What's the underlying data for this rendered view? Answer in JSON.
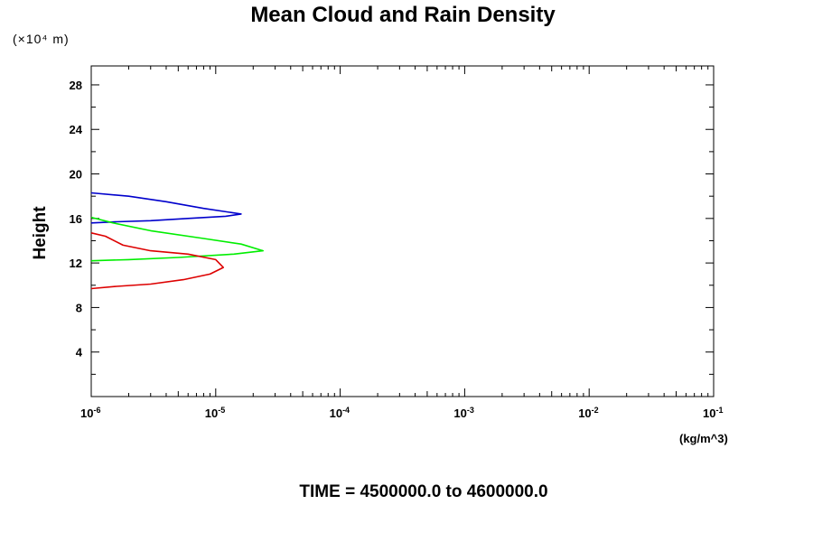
{
  "chart_data": {
    "type": "line",
    "title": "Mean Cloud and Rain Density",
    "ylabel": "Height",
    "y_unit_note": "(×10⁴ m)",
    "x_unit": "(kg/m^3)",
    "footer": "TIME = 4500000.0 to 4600000.0",
    "x_scale": "log",
    "xlim": [
      1e-06,
      0.1
    ],
    "ylim": [
      0,
      29.7
    ],
    "grid": false,
    "x_ticks": [
      {
        "value": 1e-06,
        "base": "10",
        "exp": "-6"
      },
      {
        "value": 1e-05,
        "base": "10",
        "exp": "-5"
      },
      {
        "value": 0.0001,
        "base": "10",
        "exp": "-4"
      },
      {
        "value": 0.001,
        "base": "10",
        "exp": "-3"
      },
      {
        "value": 0.01,
        "base": "10",
        "exp": "-2"
      },
      {
        "value": 0.1,
        "base": "10",
        "exp": "-1"
      }
    ],
    "y_ticks": [
      4,
      8,
      12,
      16,
      20,
      24,
      28
    ],
    "series": [
      {
        "color": "#0000cc",
        "points": [
          [
            1e-06,
            18.3
          ],
          [
            2e-06,
            18.0
          ],
          [
            4e-06,
            17.5
          ],
          [
            8e-06,
            16.9
          ],
          [
            1.6e-05,
            16.4
          ],
          [
            1.2e-05,
            16.2
          ],
          [
            6e-06,
            16.0
          ],
          [
            3e-06,
            15.8
          ],
          [
            1.6e-06,
            15.7
          ],
          [
            1e-06,
            15.6
          ]
        ]
      },
      {
        "color": "#00ee00",
        "points": [
          [
            1e-06,
            16.1
          ],
          [
            1.5e-06,
            15.6
          ],
          [
            3e-06,
            14.9
          ],
          [
            8e-06,
            14.2
          ],
          [
            1.6e-05,
            13.7
          ],
          [
            2.4e-05,
            13.1
          ],
          [
            1.4e-05,
            12.8
          ],
          [
            5e-06,
            12.5
          ],
          [
            2e-06,
            12.3
          ],
          [
            1e-06,
            12.2
          ]
        ]
      },
      {
        "color": "#dd0000",
        "points": [
          [
            1e-06,
            14.7
          ],
          [
            1.3e-06,
            14.4
          ],
          [
            1.8e-06,
            13.6
          ],
          [
            3e-06,
            13.1
          ],
          [
            6e-06,
            12.8
          ],
          [
            1e-05,
            12.3
          ],
          [
            1.15e-05,
            11.6
          ],
          [
            9e-06,
            11.0
          ],
          [
            5.5e-06,
            10.5
          ],
          [
            3e-06,
            10.1
          ],
          [
            1.6e-06,
            9.9
          ],
          [
            1e-06,
            9.7
          ]
        ]
      }
    ]
  }
}
